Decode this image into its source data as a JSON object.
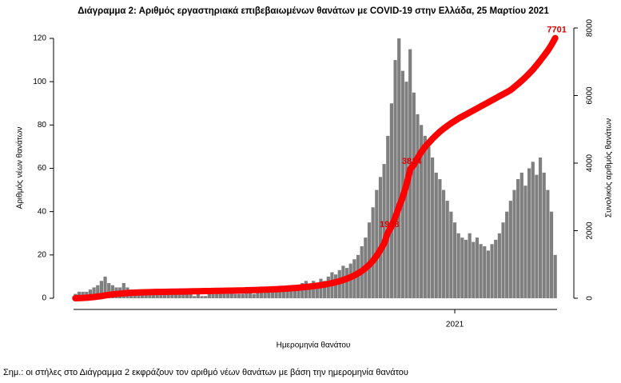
{
  "chart_data": {
    "type": "bar-line",
    "title": "Διάγραμμα 2: Αριθμός εργαστηριακά επιβεβαιωμένων θανάτων με COVID-19 στην Ελλάδα, 25 Μαρτίου 2021",
    "x_label": "Ημερομηνία θανάτου",
    "y_label": "Αριθμός νέων θανάτων",
    "y2_label": "Συνολικός αριθμός θανάτων",
    "note": "Σημ.: οι στήλες στο Διάγραμμα 2 εκφράζουν τον αριθμό νέων θανάτων με βάση την ημερομηνία θανάτου",
    "categories": [
      null,
      null,
      null,
      null,
      null,
      null,
      null,
      null,
      null,
      null,
      null,
      null,
      null,
      null,
      null,
      null,
      null,
      null,
      null,
      null,
      null,
      null,
      null,
      null,
      null,
      null,
      null,
      null,
      null,
      null,
      null,
      null,
      null,
      null,
      null,
      null,
      null,
      null,
      null,
      null,
      null,
      null,
      null,
      null,
      null,
      null,
      null,
      null,
      null,
      null,
      null,
      null,
      null,
      null,
      null,
      null,
      null,
      null,
      null,
      null,
      null,
      null,
      null,
      null,
      null,
      null,
      null,
      null,
      null,
      null,
      null,
      null,
      null,
      null,
      null,
      null,
      null,
      null,
      null,
      null,
      null,
      null,
      null,
      null,
      null,
      null,
      null,
      null,
      null,
      null,
      null,
      null,
      null,
      null,
      null,
      null,
      null,
      null,
      null,
      null,
      null,
      null,
      "2021",
      null,
      null,
      null,
      null,
      null,
      null,
      null,
      null,
      null,
      null,
      null,
      null,
      null,
      null,
      null,
      null,
      null,
      null,
      null,
      null,
      null,
      null,
      null,
      null,
      null,
      null,
      null
    ],
    "series": [
      {
        "name": "Αριθμός νέων θανάτων",
        "color": "#7f7f7f",
        "values": [
          2,
          3,
          3,
          3,
          4,
          5,
          6,
          8,
          10,
          7,
          6,
          5,
          5,
          7,
          5,
          4,
          4,
          3,
          3,
          4,
          3,
          3,
          3,
          2,
          3,
          2,
          3,
          2,
          2,
          2,
          2,
          2,
          1,
          2,
          1,
          1,
          2,
          2,
          3,
          2,
          2,
          2,
          3,
          2,
          2,
          2,
          3,
          3,
          2,
          3,
          4,
          3,
          3,
          4,
          3,
          5,
          4,
          5,
          6,
          5,
          6,
          7,
          8,
          6,
          8,
          7,
          9,
          8,
          10,
          12,
          11,
          13,
          15,
          14,
          16,
          18,
          20,
          24,
          28,
          35,
          42,
          50,
          56,
          62,
          75,
          90,
          110,
          120,
          105,
          100,
          115,
          95,
          85,
          80,
          75,
          70,
          65,
          58,
          55,
          50,
          45,
          40,
          35,
          30,
          28,
          27,
          30,
          26,
          28,
          25,
          24,
          22,
          25,
          27,
          30,
          35,
          40,
          45,
          50,
          55,
          58,
          52,
          60,
          63,
          57,
          65,
          58,
          50,
          40,
          20
        ]
      },
      {
        "name": "Συνολικός αριθμός θανάτων",
        "color": "#ff0000",
        "axis": "y2",
        "values": [
          0,
          5,
          10,
          15,
          25,
          35,
          50,
          65,
          85,
          100,
          115,
          125,
          135,
          145,
          155,
          160,
          165,
          170,
          175,
          178,
          181,
          184,
          186,
          188,
          190,
          192,
          194,
          196,
          198,
          200,
          202,
          204,
          206,
          208,
          210,
          212,
          214,
          216,
          218,
          220,
          222,
          224,
          226,
          228,
          230,
          233,
          236,
          239,
          242,
          246,
          250,
          254,
          258,
          263,
          268,
          274,
          280,
          287,
          295,
          303,
          312,
          322,
          333,
          345,
          358,
          372,
          388,
          405,
          425,
          448,
          475,
          505,
          540,
          580,
          625,
          675,
          735,
          805,
          890,
          990,
          1110,
          1260,
          1430,
          1620,
          1938,
          2130,
          2400,
          2700,
          3000,
          3350,
          3814,
          3950,
          4150,
          4330,
          4480,
          4600,
          4720,
          4830,
          4930,
          5020,
          5100,
          5180,
          5250,
          5320,
          5380,
          5440,
          5500,
          5560,
          5620,
          5680,
          5740,
          5800,
          5860,
          5920,
          5980,
          6040,
          6100,
          6160,
          6250,
          6340,
          6440,
          6540,
          6650,
          6770,
          6900,
          7040,
          7180,
          7330,
          7500,
          7701
        ],
        "value_labels": [
          null,
          null,
          null,
          null,
          null,
          null,
          null,
          null,
          null,
          null,
          null,
          null,
          null,
          null,
          null,
          null,
          null,
          null,
          null,
          null,
          null,
          null,
          null,
          null,
          null,
          null,
          null,
          null,
          null,
          null,
          null,
          null,
          null,
          null,
          null,
          null,
          null,
          null,
          null,
          null,
          null,
          null,
          null,
          null,
          null,
          null,
          null,
          null,
          null,
          null,
          null,
          null,
          null,
          null,
          null,
          null,
          null,
          null,
          null,
          null,
          null,
          null,
          null,
          null,
          null,
          null,
          null,
          null,
          null,
          null,
          null,
          null,
          null,
          null,
          null,
          null,
          null,
          null,
          null,
          null,
          null,
          null,
          null,
          null,
          "1938",
          null,
          null,
          null,
          null,
          null,
          "3814",
          null,
          null,
          null,
          null,
          null,
          null,
          null,
          null,
          null,
          null,
          null,
          null,
          null,
          null,
          null,
          null,
          null,
          null,
          null,
          null,
          null,
          null,
          null,
          null,
          null,
          null,
          null,
          null,
          null,
          null,
          null,
          null,
          null,
          null,
          null,
          null,
          null,
          null,
          "7701"
        ]
      }
    ],
    "ylim": [
      0,
      120
    ],
    "yticks": [
      0,
      20,
      40,
      60,
      80,
      100,
      120
    ],
    "y2lim": [
      0,
      8000
    ],
    "y2ticks": [
      0,
      2000,
      4000,
      6000,
      8000
    ]
  }
}
